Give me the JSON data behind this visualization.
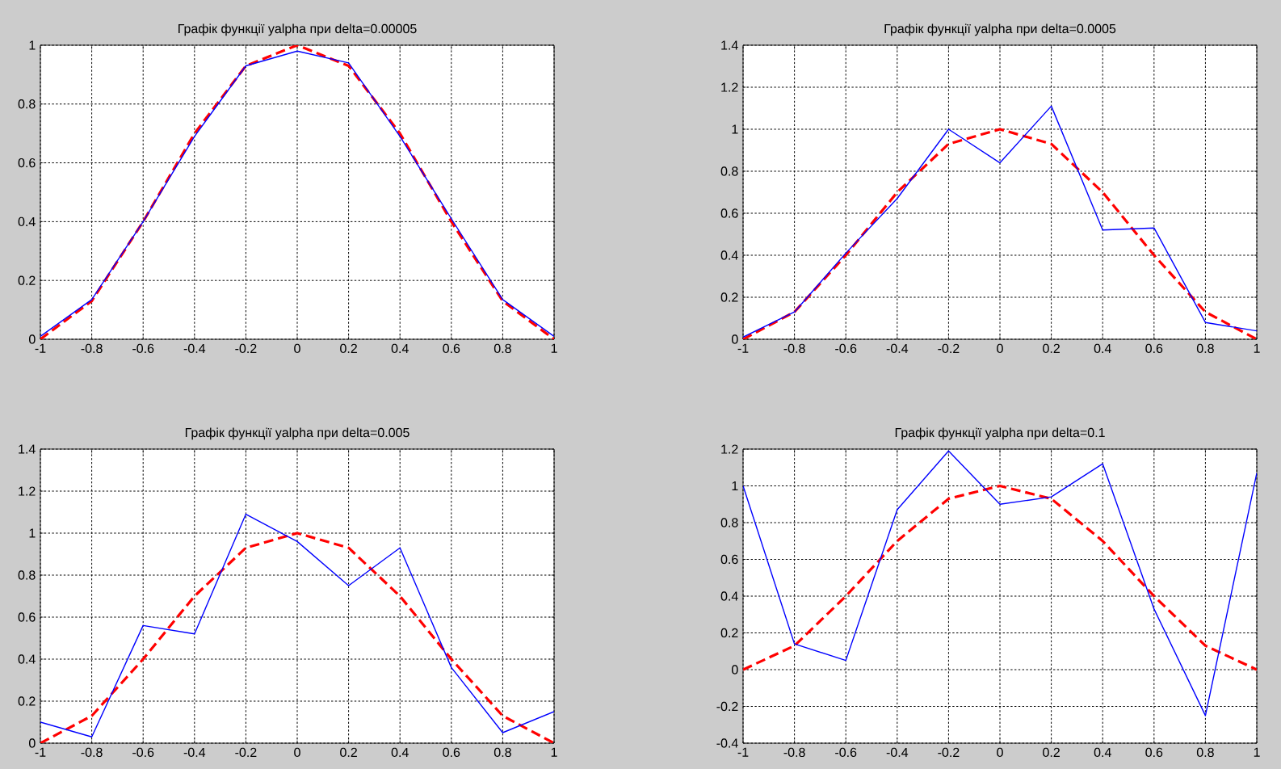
{
  "chart_data": [
    {
      "type": "line",
      "title": "Графік функції yalpha при delta=0.00005",
      "x": [
        -1,
        -0.8,
        -0.6,
        -0.4,
        -0.2,
        0,
        0.2,
        0.4,
        0.6,
        0.8,
        1
      ],
      "series": [
        {
          "color": "#ff0000",
          "line_style": "dashed",
          "values": [
            0,
            0.13,
            0.4,
            0.7,
            0.93,
            1,
            0.93,
            0.7,
            0.4,
            0.13,
            0
          ]
        },
        {
          "color": "#0000ff",
          "line_style": "solid",
          "values": [
            0.01,
            0.135,
            0.4,
            0.69,
            0.93,
            0.98,
            0.94,
            0.69,
            0.41,
            0.135,
            0.01
          ]
        }
      ],
      "xlim": [
        -1,
        1
      ],
      "ylim": [
        0,
        1
      ],
      "xticks": [
        -1,
        -0.8,
        -0.6,
        -0.4,
        -0.2,
        0,
        0.2,
        0.4,
        0.6,
        0.8,
        1
      ],
      "yticks": [
        0,
        0.2,
        0.4,
        0.6,
        0.8,
        1
      ],
      "grid": true
    },
    {
      "type": "line",
      "title": "Графік функції yalpha при delta=0.0005",
      "x": [
        -1,
        -0.8,
        -0.6,
        -0.4,
        -0.2,
        0,
        0.2,
        0.4,
        0.6,
        0.8,
        1
      ],
      "series": [
        {
          "color": "#ff0000",
          "line_style": "dashed",
          "values": [
            0,
            0.13,
            0.4,
            0.7,
            0.93,
            1,
            0.93,
            0.7,
            0.4,
            0.13,
            0
          ]
        },
        {
          "color": "#0000ff",
          "line_style": "solid",
          "values": [
            0.01,
            0.13,
            0.41,
            0.67,
            1.0,
            0.84,
            1.11,
            0.52,
            0.53,
            0.08,
            0.04
          ]
        }
      ],
      "xlim": [
        -1,
        1
      ],
      "ylim": [
        0,
        1.4
      ],
      "xticks": [
        -1,
        -0.8,
        -0.6,
        -0.4,
        -0.2,
        0,
        0.2,
        0.4,
        0.6,
        0.8,
        1
      ],
      "yticks": [
        0,
        0.2,
        0.4,
        0.6,
        0.8,
        1,
        1.2,
        1.4
      ],
      "grid": true
    },
    {
      "type": "line",
      "title": "Графік функції yalpha при delta=0.005",
      "x": [
        -1,
        -0.8,
        -0.6,
        -0.4,
        -0.2,
        0,
        0.2,
        0.4,
        0.6,
        0.8,
        1
      ],
      "series": [
        {
          "color": "#ff0000",
          "line_style": "dashed",
          "values": [
            0,
            0.13,
            0.4,
            0.7,
            0.93,
            1,
            0.93,
            0.7,
            0.4,
            0.13,
            0
          ]
        },
        {
          "color": "#0000ff",
          "line_style": "solid",
          "values": [
            0.1,
            0.03,
            0.56,
            0.52,
            1.09,
            0.96,
            0.75,
            0.93,
            0.36,
            0.05,
            0.15
          ]
        }
      ],
      "xlim": [
        -1,
        1
      ],
      "ylim": [
        0,
        1.4
      ],
      "xticks": [
        -1,
        -0.8,
        -0.6,
        -0.4,
        -0.2,
        0,
        0.2,
        0.4,
        0.6,
        0.8,
        1
      ],
      "yticks": [
        0,
        0.2,
        0.4,
        0.6,
        0.8,
        1,
        1.2,
        1.4
      ],
      "grid": true
    },
    {
      "type": "line",
      "title": "Графік функції yalpha при delta=0.1",
      "x": [
        -1,
        -0.8,
        -0.6,
        -0.4,
        -0.2,
        0,
        0.2,
        0.4,
        0.6,
        0.8,
        1
      ],
      "series": [
        {
          "color": "#ff0000",
          "line_style": "dashed",
          "values": [
            0,
            0.13,
            0.4,
            0.7,
            0.93,
            1,
            0.93,
            0.7,
            0.4,
            0.13,
            0
          ]
        },
        {
          "color": "#0000ff",
          "line_style": "solid",
          "values": [
            1.0,
            0.14,
            0.05,
            0.87,
            1.19,
            0.9,
            0.94,
            1.12,
            0.33,
            -0.25,
            1.07
          ]
        }
      ],
      "xlim": [
        -1,
        1
      ],
      "ylim": [
        -0.4,
        1.2
      ],
      "xticks": [
        -1,
        -0.8,
        -0.6,
        -0.4,
        -0.2,
        0,
        0.2,
        0.4,
        0.6,
        0.8,
        1
      ],
      "yticks": [
        -0.4,
        -0.2,
        0,
        0.2,
        0.4,
        0.6,
        0.8,
        1,
        1.2
      ],
      "grid": true
    }
  ]
}
